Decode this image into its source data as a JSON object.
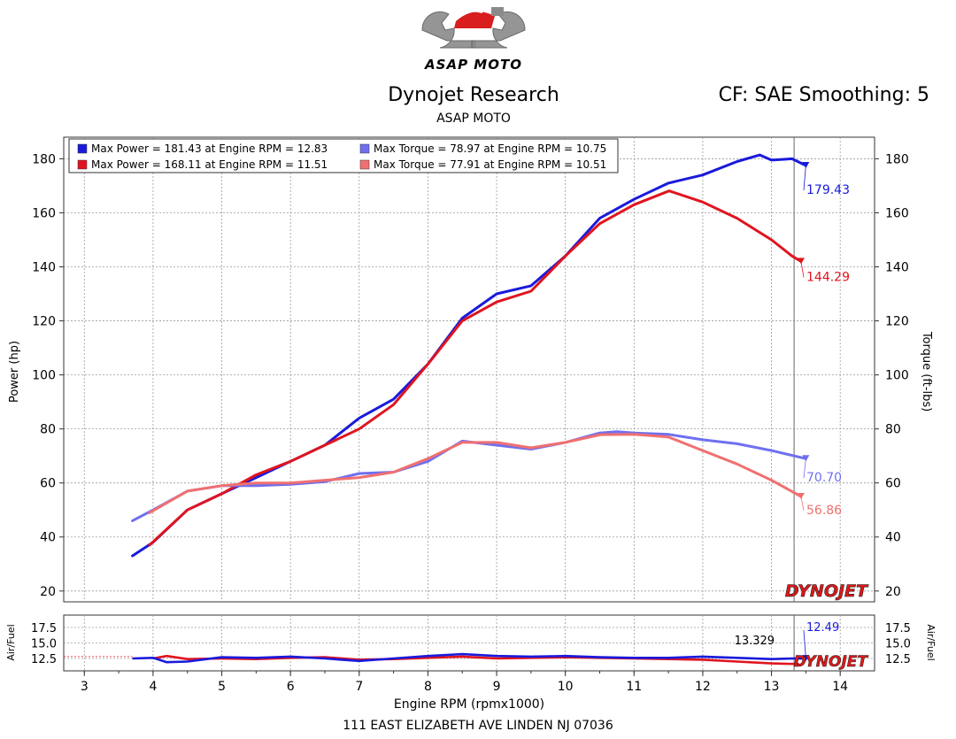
{
  "header": {
    "brand": "ASAP MOTO",
    "title": "Dynojet Research",
    "subtitle": "ASAP MOTO",
    "cf_info": "CF: SAE Smoothing: 5"
  },
  "footer": {
    "address": "111 EAST ELIZABETH AVE LINDEN NJ 07036"
  },
  "watermark": "DYNOJET",
  "colors": {
    "blue": "#1a1adc",
    "red": "#e0141e",
    "light_blue": "#6f6ff0",
    "light_red": "#f07070",
    "watermark_red": "#e01818"
  },
  "legend": [
    {
      "text": "Max Power = 181.43 at Engine RPM = 12.83",
      "color": "#1a1adc"
    },
    {
      "text": "Max Power = 168.11 at Engine RPM = 11.51",
      "color": "#e0141e"
    },
    {
      "text": "Max Torque = 78.97 at Engine RPM = 10.75",
      "color": "#6f6ff0"
    },
    {
      "text": "Max Torque = 77.91 at Engine RPM = 10.51",
      "color": "#f07070"
    }
  ],
  "chart_data": [
    {
      "type": "line",
      "title": "",
      "xlabel": "Engine RPM (rpmx1000)",
      "ylabel": "Power (hp)",
      "y2label": "Torque (ft-lbs)",
      "xlim": [
        2.7,
        14.5
      ],
      "ylim": [
        16,
        188
      ],
      "xticks": [
        3,
        4,
        5,
        6,
        7,
        8,
        9,
        10,
        11,
        12,
        13,
        14
      ],
      "yticks": [
        20,
        40,
        60,
        80,
        100,
        120,
        140,
        160,
        180
      ],
      "grid": true,
      "legend_position": "top-left",
      "cursor_x": 13.329,
      "series": [
        {
          "kind": "power",
          "color": "#1a1adc",
          "end_label": "179.43",
          "x": [
            3.7,
            4.0,
            4.5,
            5.0,
            5.5,
            6.0,
            6.5,
            7.0,
            7.5,
            8.0,
            8.5,
            9.0,
            9.5,
            10.0,
            10.5,
            11.0,
            11.5,
            12.0,
            12.5,
            12.83,
            13.0,
            13.3,
            13.5
          ],
          "y": [
            33,
            38,
            50,
            56,
            62,
            68,
            74,
            84,
            91,
            104,
            121,
            130,
            133,
            144,
            158,
            165,
            171,
            174,
            179,
            181.4,
            179.5,
            180,
            177.5
          ]
        },
        {
          "kind": "power",
          "color": "#e0141e",
          "end_label": "144.29",
          "x": [
            3.95,
            4.5,
            5.0,
            5.5,
            6.0,
            6.5,
            7.0,
            7.5,
            8.0,
            8.5,
            9.0,
            9.5,
            10.0,
            10.5,
            11.0,
            11.51,
            12.0,
            12.5,
            13.0,
            13.3,
            13.43
          ],
          "y": [
            37,
            50,
            56,
            63,
            68,
            74,
            80,
            89,
            104,
            120,
            127,
            131,
            144,
            156,
            163,
            168.1,
            164,
            158,
            150,
            144,
            142
          ]
        },
        {
          "kind": "torque",
          "color": "#6f6ff0",
          "end_label": "70.70",
          "x": [
            3.7,
            4.0,
            4.5,
            5.0,
            5.5,
            6.0,
            6.5,
            7.0,
            7.5,
            8.0,
            8.5,
            9.0,
            9.5,
            10.0,
            10.5,
            10.75,
            11.0,
            11.5,
            12.0,
            12.5,
            13.0,
            13.5
          ],
          "y": [
            46,
            50,
            57,
            59,
            59,
            59.5,
            60.5,
            63.5,
            64,
            68,
            75.5,
            74,
            72.5,
            75,
            78.5,
            79,
            78.5,
            78,
            76,
            74.5,
            72,
            69
          ]
        },
        {
          "kind": "torque",
          "color": "#f07070",
          "end_label": "56.86",
          "x": [
            3.95,
            4.5,
            5.0,
            5.5,
            6.0,
            6.5,
            7.0,
            7.5,
            8.0,
            8.5,
            9.0,
            9.5,
            10.0,
            10.51,
            11.0,
            11.5,
            12.0,
            12.5,
            13.0,
            13.43
          ],
          "y": [
            49,
            57,
            59,
            60,
            60,
            61,
            62,
            64,
            69,
            75,
            75,
            73,
            75,
            77.9,
            78,
            77,
            72,
            67,
            61,
            55
          ]
        }
      ]
    },
    {
      "type": "line",
      "title": "",
      "xlabel": "Engine RPM (rpmx1000)",
      "ylabel": "Air/Fuel",
      "y2label": "Air/Fuel",
      "xlim": [
        2.7,
        14.5
      ],
      "ylim": [
        10.5,
        19.5
      ],
      "yticks": [
        12.5,
        15.0,
        17.5
      ],
      "cursor_label": "13.329",
      "series": [
        {
          "color": "#1a1adc",
          "end_label": "12.49",
          "x": [
            3.7,
            4.0,
            4.2,
            4.5,
            5.0,
            5.5,
            6.0,
            6.5,
            7.0,
            7.5,
            8.0,
            8.5,
            9.0,
            9.5,
            10.0,
            10.5,
            11.0,
            11.5,
            12.0,
            12.5,
            13.0,
            13.3,
            13.5
          ],
          "y": [
            12.5,
            12.6,
            11.9,
            12.0,
            12.7,
            12.6,
            12.8,
            12.5,
            12.1,
            12.5,
            12.9,
            13.2,
            12.9,
            12.8,
            12.9,
            12.7,
            12.6,
            12.6,
            12.8,
            12.6,
            12.4,
            12.5,
            12.49
          ]
        },
        {
          "color": "#e0141e",
          "x": [
            4.0,
            4.2,
            4.5,
            5.0,
            5.5,
            6.0,
            6.5,
            7.0,
            7.5,
            8.0,
            8.5,
            9.0,
            9.5,
            10.0,
            10.5,
            11.0,
            11.5,
            12.0,
            12.5,
            13.0,
            13.4
          ],
          "y": [
            12.5,
            12.9,
            12.4,
            12.5,
            12.4,
            12.6,
            12.7,
            12.3,
            12.4,
            12.6,
            12.8,
            12.5,
            12.6,
            12.7,
            12.6,
            12.5,
            12.4,
            12.3,
            12.0,
            11.7,
            11.6
          ]
        }
      ]
    }
  ]
}
